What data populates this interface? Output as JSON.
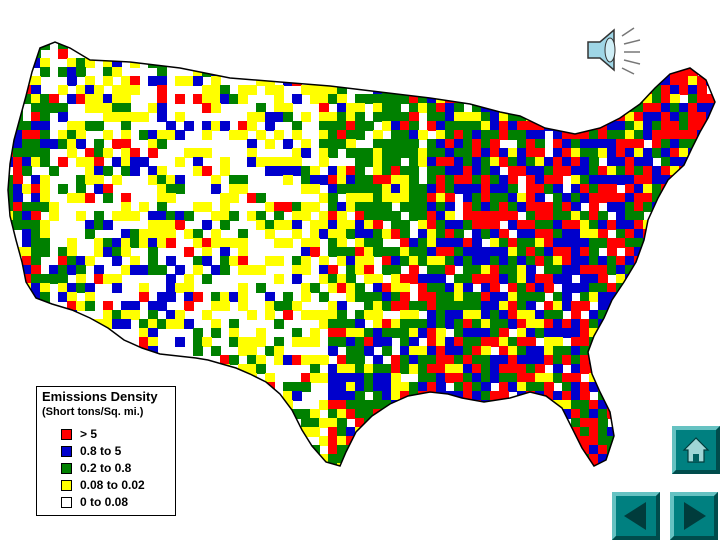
{
  "legend": {
    "title": "Emissions Density",
    "subtitle": "(Short tons/Sq. mi.)",
    "items": [
      {
        "label": "> 5",
        "color": "#ff0000"
      },
      {
        "label": "0.8 to 5",
        "color": "#0000cc"
      },
      {
        "label": "0.2 to 0.8",
        "color": "#008000"
      },
      {
        "label": "0.08 to 0.02",
        "color": "#ffff00"
      },
      {
        "label": "0 to 0.08",
        "color": "#ffffff"
      }
    ]
  },
  "map": {
    "region": "contiguous United States",
    "colors": {
      "high": "#ff0000",
      "mid_high": "#0000cc",
      "mid": "#008000",
      "low": "#ffff00",
      "lowest": "#ffffff",
      "outline": "#000000"
    }
  },
  "controls": {
    "home_icon": "home-icon",
    "back_icon": "back-arrow-icon",
    "forward_icon": "forward-arrow-icon",
    "sound_icon": "speaker-icon",
    "button_color": "#008080"
  }
}
